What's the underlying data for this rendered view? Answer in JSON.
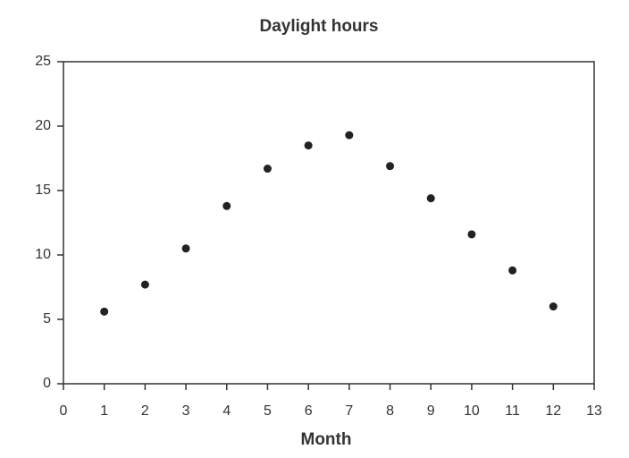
{
  "chart_data": {
    "type": "scatter",
    "title": "Daylight hours",
    "x_label": "Month",
    "x": [
      1,
      2,
      3,
      4,
      5,
      6,
      7,
      8,
      9,
      10,
      11,
      12
    ],
    "values": [
      5.6,
      7.7,
      10.5,
      13.8,
      16.7,
      18.5,
      19.3,
      16.9,
      14.4,
      11.6,
      8.8,
      6.0
    ],
    "color": "#222222",
    "xlim": [
      0,
      13
    ],
    "xticks": [
      0,
      1,
      2,
      3,
      4,
      5,
      6,
      7,
      8,
      9,
      10,
      11,
      12,
      13
    ],
    "ylim": [
      0,
      25
    ],
    "yticks": [
      0,
      5,
      10,
      15,
      20,
      25
    ],
    "grid": false
  }
}
